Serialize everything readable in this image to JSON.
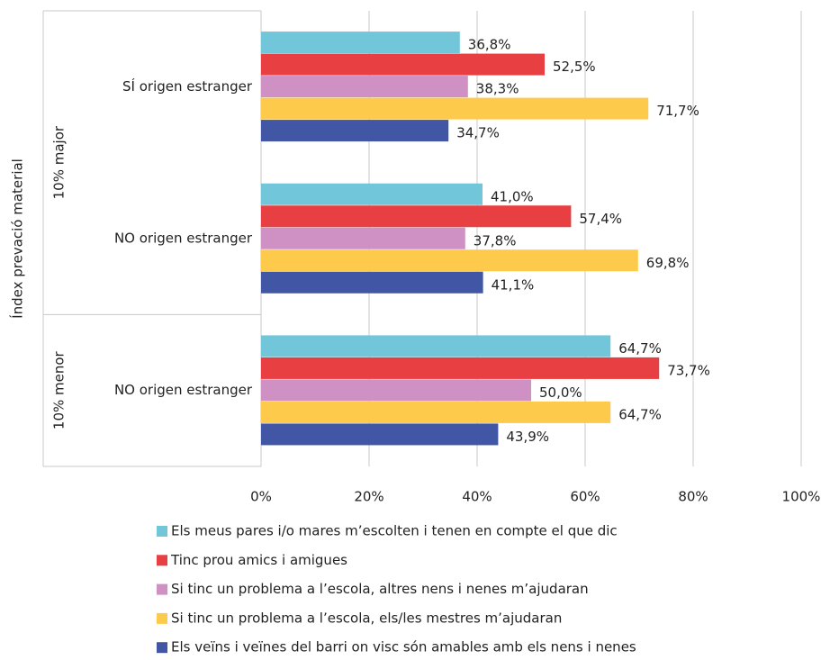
{
  "chart_data": {
    "type": "hbar",
    "y_axis_label": "Índex prevació material",
    "category_groups": [
      {
        "label": "10% major",
        "span": 2
      },
      {
        "label": "10% menor",
        "span": 1
      }
    ],
    "categories": [
      "SÍ origen estranger",
      "NO origen estranger",
      "NO origen estranger"
    ],
    "series": [
      {
        "name": "Els meus pares i/o mares m’escolten i tenen en compte el que dic",
        "color": "#72c6da",
        "values": [
          36.8,
          41.0,
          64.7
        ],
        "value_labels": [
          "36,8%",
          "41,0%",
          "64,7%"
        ]
      },
      {
        "name": "Tinc prou amics i amigues",
        "color": "#e83f42",
        "values": [
          52.5,
          57.4,
          73.7
        ],
        "value_labels": [
          "52,5%",
          "57,4%",
          "73,7%"
        ]
      },
      {
        "name": "Si tinc un problema a l’escola, altres nens i nenes m’ajudaran",
        "color": "#cf90c4",
        "values": [
          38.3,
          37.8,
          50.0
        ],
        "value_labels": [
          "38,3%",
          "37,8%",
          "50,0%"
        ]
      },
      {
        "name": "Si tinc un problema a l’escola, els/les mestres m’ajudaran",
        "color": "#fdca4b",
        "values": [
          71.7,
          69.8,
          64.7
        ],
        "value_labels": [
          "71,7%",
          "69,8%",
          "64,7%"
        ]
      },
      {
        "name": "Els veïns i veïnes del barri on visc són amables amb els nens i nenes",
        "color": "#4157a5",
        "values": [
          34.7,
          41.1,
          43.9
        ],
        "value_labels": [
          "34,7%",
          "41,1%",
          "43,9%"
        ]
      }
    ],
    "xlim": [
      0,
      100
    ],
    "xticks": [
      {
        "value": 0,
        "label": "0%"
      },
      {
        "value": 20,
        "label": "20%"
      },
      {
        "value": 40,
        "label": "40%"
      },
      {
        "value": 60,
        "label": "60%"
      },
      {
        "value": 80,
        "label": "80%"
      },
      {
        "value": 100,
        "label": "100%"
      }
    ],
    "grid": true,
    "legend": "bottom"
  }
}
